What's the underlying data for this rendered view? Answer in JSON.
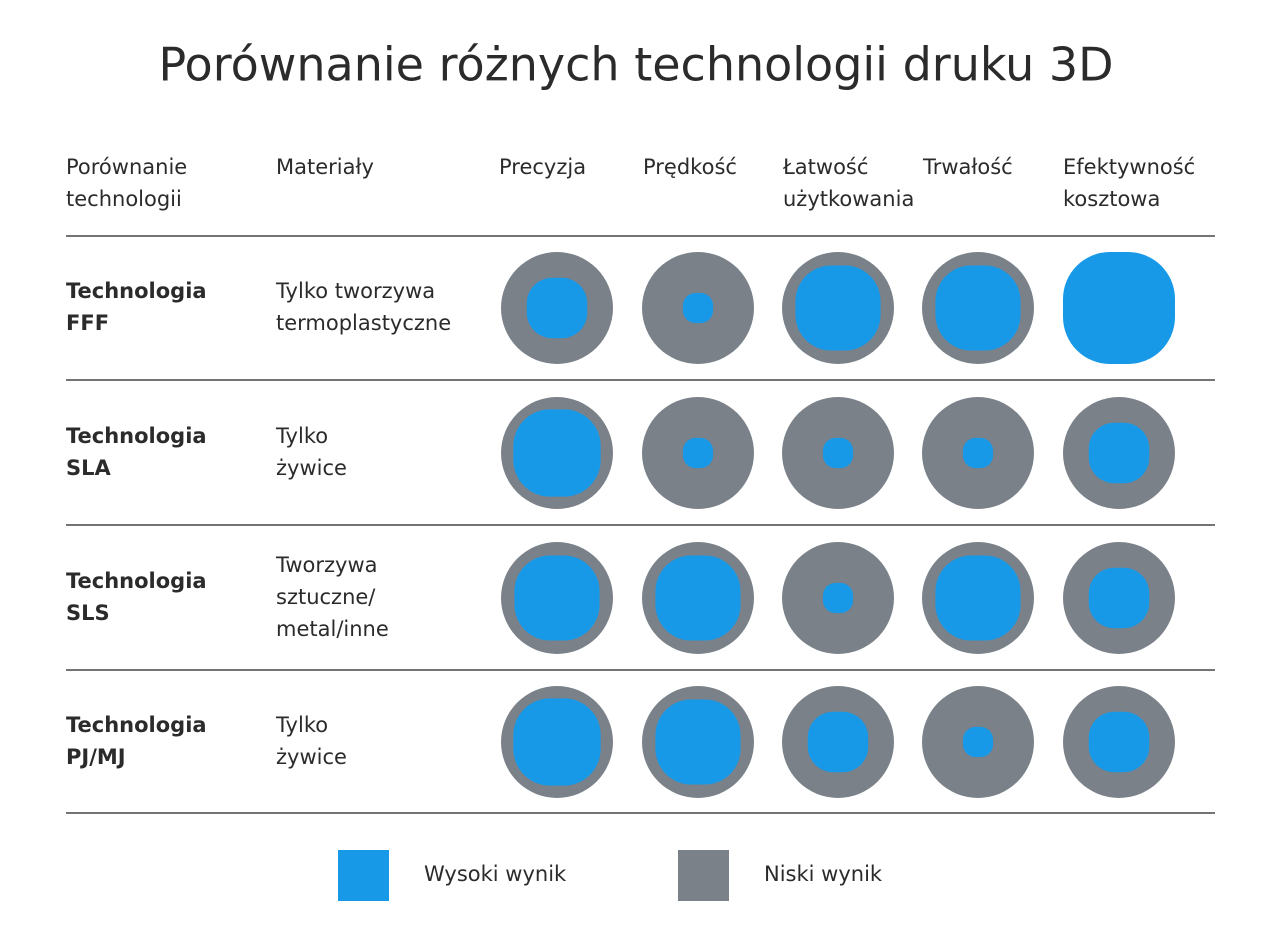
{
  "title": "Porównanie różnych technologii druku 3D",
  "table": {
    "header": [
      [
        "Porównanie",
        "technologii"
      ],
      [
        "Materiały"
      ],
      [
        "Precyzja"
      ],
      [
        "Prędkość"
      ],
      [
        "Łatwość",
        "użytkowania"
      ],
      [
        "Trwałość"
      ],
      [
        "Efektywność",
        "kosztowa"
      ]
    ],
    "rows": [
      {
        "technology": [
          "Technologia",
          "FFF"
        ],
        "materials": [
          "Tylko tworzywa",
          "termoplastyczne"
        ],
        "scores": [
          0.54,
          0.27,
          0.76,
          0.76,
          1.0
        ]
      },
      {
        "technology": [
          "Technologia",
          "SLA"
        ],
        "materials": [
          "Tylko",
          "żywice"
        ],
        "scores": [
          0.78,
          0.27,
          0.27,
          0.27,
          0.54
        ]
      },
      {
        "technology": [
          "Technologia",
          "SLS"
        ],
        "materials": [
          "Tworzywa",
          "sztuczne/",
          "metal/inne"
        ],
        "scores": [
          0.76,
          0.76,
          0.27,
          0.76,
          0.54
        ]
      },
      {
        "technology": [
          "Technologia",
          "PJ/MJ"
        ],
        "materials": [
          "Tylko",
          "żywice"
        ],
        "scores": [
          0.78,
          0.76,
          0.54,
          0.27,
          0.54
        ]
      }
    ]
  },
  "legend": [
    {
      "label": "Wysoki wynik",
      "color": "#1799e8"
    },
    {
      "label": "Niski wynik",
      "color": "#7a8189"
    }
  ]
}
